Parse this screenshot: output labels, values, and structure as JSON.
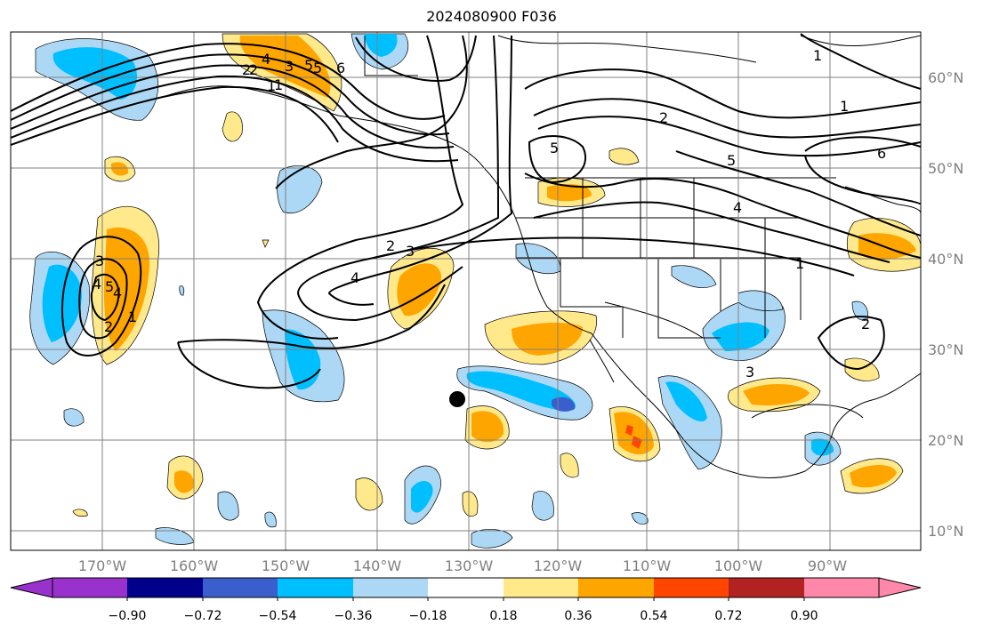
{
  "title": "2024080900 F036",
  "lon_labels": [
    "170°W",
    "160°W",
    "150°W",
    "140°W",
    "130°W",
    "120°W",
    "110°W",
    "100°W",
    "90°W"
  ],
  "lat_labels": [
    "60°N",
    "50°N",
    "40°N",
    "30°N",
    "20°N",
    "10°N"
  ],
  "colorbar": {
    "labels": [
      "−0.90",
      "−0.72",
      "−0.54",
      "−0.36",
      "−0.18",
      "0.18",
      "0.36",
      "0.54",
      "0.72",
      "0.90"
    ],
    "colors": [
      "#9932cc",
      "#00008b",
      "#3a5fcd",
      "#00bfff",
      "#add8f5",
      "#ffffff",
      "#ffe98a",
      "#ffa500",
      "#ff4500",
      "#b22222",
      "#ff88aa"
    ]
  },
  "contour_labels": [
    "1",
    "2",
    "3",
    "4",
    "5",
    "6",
    "5",
    "4",
    "3",
    "2",
    "1",
    "2",
    "3",
    "4",
    "5",
    "1",
    "2",
    "4",
    "5",
    "6",
    "1",
    "1",
    "2",
    "3",
    "4",
    "5",
    "2",
    "1"
  ],
  "marker": {
    "type": "dot",
    "color": "#000000"
  }
}
